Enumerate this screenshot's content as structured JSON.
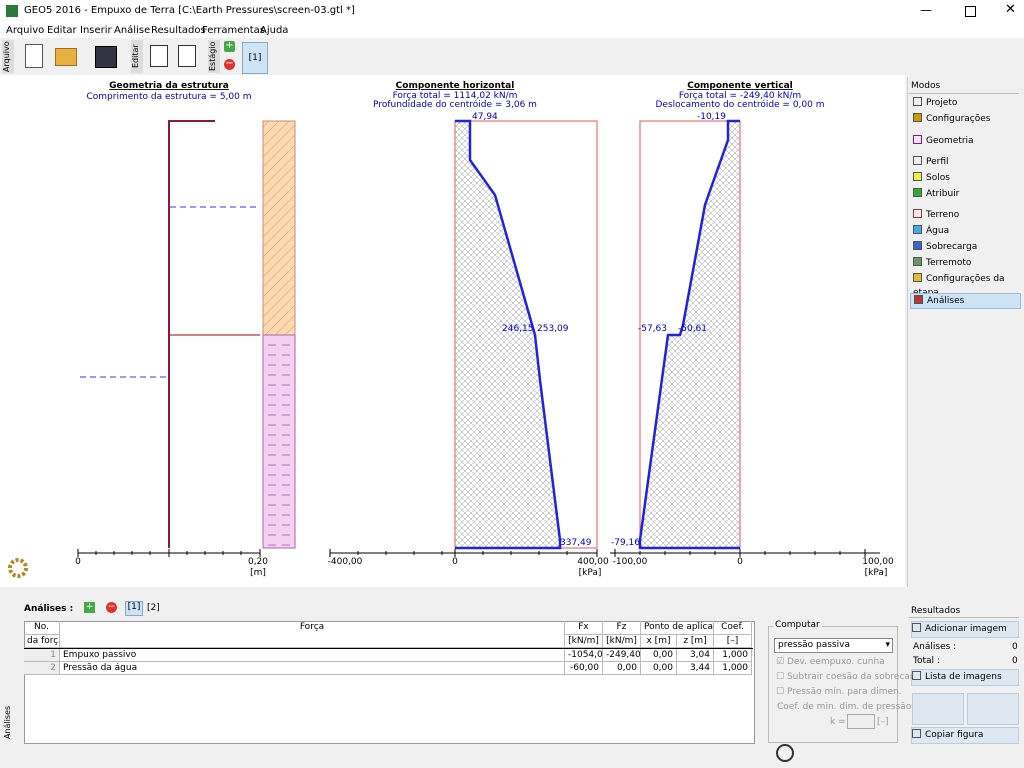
{
  "window": {
    "title": "GEO5 2016 - Empuxo de Terra [C:\\Earth Pressures\\screen-03.gtl *]"
  },
  "menu": [
    "Arquivo",
    "Editar",
    "Inserir",
    "Análise",
    "Resultados",
    "Ferramentas",
    "Ajuda"
  ],
  "toolbar": {
    "file_label": "Arquivo",
    "edit_label": "Editar",
    "stage_label": "Estágio",
    "stage": "[1]"
  },
  "geometry": {
    "title": "Geometria da estrutura",
    "subtitle": "Comprimento da estrutura = 5,00 m",
    "axis": [
      "0",
      "0,20"
    ],
    "unit": "[m]"
  },
  "horizontal": {
    "title": "Componente horizontal",
    "lines": [
      "Força total = 1114,02 kN/m",
      "Profundidade do centróide = 3,06 m"
    ],
    "labels": [
      "47,94",
      "246,15",
      "253,09",
      "337,49"
    ],
    "axis": [
      "-400,00",
      "0",
      "400,00"
    ],
    "unit": "[kPa]"
  },
  "vertical": {
    "title": "Componente vertical",
    "lines": [
      "Força total = -249,40 kN/m",
      "Deslocamento do centróide = 0,00 m"
    ],
    "labels": [
      "-10,19",
      "-57,63",
      "-50,61",
      "-79,16"
    ],
    "axis": [
      "-100,00",
      "0",
      "100,00"
    ],
    "unit": "[kPa]"
  },
  "modes": {
    "title": "Modos",
    "items": [
      "Projeto",
      "Configurações",
      "Geometria",
      "Perfil",
      "Solos",
      "Atribuir",
      "Terreno",
      "Água",
      "Sobrecarga",
      "Terremoto",
      "Configurações da etapa",
      "Análises"
    ]
  },
  "results": {
    "title": "Resultados",
    "add_image": "Adicionar imagem",
    "analyses_label": "Análises :",
    "analyses_count": "0",
    "total_label": "Total :",
    "total_count": "0",
    "image_list": "Lista de imagens",
    "copy_figure": "Copiar figura"
  },
  "bottom": {
    "side_label": "Análises",
    "label": "Análises :",
    "tabs": [
      "[1]",
      "[2]"
    ]
  },
  "table": {
    "header": [
      [
        "No.",
        "da força"
      ],
      [
        "Força",
        ""
      ],
      [
        "Fx",
        "[kN/m]"
      ],
      [
        "Fz",
        "[kN/m]"
      ],
      [
        "x [m]",
        "z [m]"
      ],
      [
        "Coef.",
        "[–]"
      ]
    ],
    "group": "Ponto de aplicação",
    "rows": [
      [
        "1",
        "Empuxo passivo",
        "-1054,02",
        "-249,40",
        "0,00",
        "3,04",
        "1,000"
      ],
      [
        "2",
        "Pressão da água",
        "-60,00",
        "0,00",
        "0,00",
        "3,44",
        "1,000"
      ]
    ]
  },
  "compute": {
    "title": "Computar",
    "select": "pressão passiva",
    "options": [
      "Dev. eempuxo. cunha",
      "Subtrair coesão da sobrecar",
      "Pressão mín. para dimen."
    ],
    "coef_label": "Coef. de min. dim. de pressão",
    "k_label": "k =",
    "k_unit": "[–]"
  }
}
